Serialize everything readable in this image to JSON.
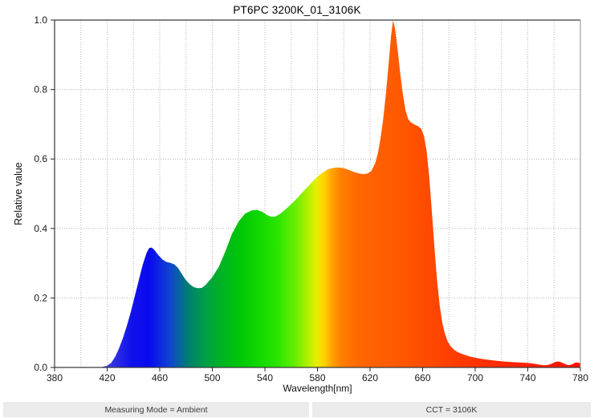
{
  "title": "PT6PC 3200K_01_3106K",
  "footer": {
    "measuring_mode": "Measuring Mode = Ambient",
    "cct": "CCT = 3106K"
  },
  "chart_data": {
    "type": "area",
    "title": "PT6PC 3200K_01_3106K",
    "xlabel": "Wavelength[nm]",
    "ylabel": "Relative value",
    "xlim": [
      380,
      780
    ],
    "ylim": [
      0,
      1
    ],
    "grid": {
      "x_step_nm": 20,
      "y_step": 0.2,
      "style": "dotted",
      "color": "#b3b3b3"
    },
    "x_ticks": [
      {
        "value": 380,
        "label": "380"
      },
      {
        "value": 420,
        "label": "420"
      },
      {
        "value": 460,
        "label": "460"
      },
      {
        "value": 500,
        "label": "500"
      },
      {
        "value": 540,
        "label": "540"
      },
      {
        "value": 580,
        "label": "580"
      },
      {
        "value": 620,
        "label": "620"
      },
      {
        "value": 660,
        "label": "660"
      },
      {
        "value": 700,
        "label": "700"
      },
      {
        "value": 740,
        "label": "740"
      },
      {
        "value": 780,
        "label": "780"
      }
    ],
    "y_ticks": [
      {
        "value": 0.0,
        "label": "0.0"
      },
      {
        "value": 0.2,
        "label": "0.2"
      },
      {
        "value": 0.4,
        "label": "0.4"
      },
      {
        "value": 0.6,
        "label": "0.6"
      },
      {
        "value": 0.8,
        "label": "0.8"
      },
      {
        "value": 1.0,
        "label": "1.0"
      }
    ],
    "points": [
      [
        414,
        0
      ],
      [
        417,
        0.002
      ],
      [
        420,
        0.005
      ],
      [
        423,
        0.013
      ],
      [
        426,
        0.03
      ],
      [
        429,
        0.055
      ],
      [
        432,
        0.085
      ],
      [
        435,
        0.12
      ],
      [
        438,
        0.16
      ],
      [
        441,
        0.205
      ],
      [
        444,
        0.25
      ],
      [
        447,
        0.295
      ],
      [
        450,
        0.33
      ],
      [
        452,
        0.344
      ],
      [
        454,
        0.345
      ],
      [
        456,
        0.338
      ],
      [
        459,
        0.323
      ],
      [
        462,
        0.311
      ],
      [
        465,
        0.304
      ],
      [
        468,
        0.301
      ],
      [
        471,
        0.297
      ],
      [
        474,
        0.286
      ],
      [
        477,
        0.268
      ],
      [
        480,
        0.251
      ],
      [
        483,
        0.239
      ],
      [
        486,
        0.231
      ],
      [
        489,
        0.228
      ],
      [
        492,
        0.229
      ],
      [
        495,
        0.238
      ],
      [
        500,
        0.26
      ],
      [
        505,
        0.29
      ],
      [
        510,
        0.335
      ],
      [
        515,
        0.385
      ],
      [
        520,
        0.42
      ],
      [
        525,
        0.443
      ],
      [
        530,
        0.452
      ],
      [
        534,
        0.4535
      ],
      [
        538,
        0.448
      ],
      [
        542,
        0.438
      ],
      [
        545,
        0.4335
      ],
      [
        548,
        0.4345
      ],
      [
        552,
        0.443
      ],
      [
        556,
        0.456
      ],
      [
        560,
        0.47
      ],
      [
        565,
        0.489
      ],
      [
        570,
        0.51
      ],
      [
        575,
        0.53
      ],
      [
        580,
        0.5495
      ],
      [
        584,
        0.5615
      ],
      [
        588,
        0.5705
      ],
      [
        592,
        0.5745
      ],
      [
        596,
        0.5755
      ],
      [
        600,
        0.5735
      ],
      [
        604,
        0.5685
      ],
      [
        608,
        0.5625
      ],
      [
        612,
        0.558
      ],
      [
        615,
        0.5565
      ],
      [
        618,
        0.558
      ],
      [
        621,
        0.5655
      ],
      [
        624,
        0.589
      ],
      [
        626,
        0.617
      ],
      [
        628,
        0.66
      ],
      [
        630,
        0.715
      ],
      [
        632,
        0.785
      ],
      [
        634,
        0.868
      ],
      [
        636,
        0.955
      ],
      [
        637.5,
        1.0
      ],
      [
        639,
        0.975
      ],
      [
        641,
        0.915
      ],
      [
        643,
        0.845
      ],
      [
        645,
        0.786
      ],
      [
        647,
        0.74
      ],
      [
        649,
        0.715
      ],
      [
        651,
        0.7055
      ],
      [
        654,
        0.699
      ],
      [
        657,
        0.6935
      ],
      [
        659,
        0.6865
      ],
      [
        661,
        0.667
      ],
      [
        663,
        0.625
      ],
      [
        665,
        0.55
      ],
      [
        667,
        0.45
      ],
      [
        669,
        0.345
      ],
      [
        671,
        0.25
      ],
      [
        673,
        0.178
      ],
      [
        675,
        0.128
      ],
      [
        677,
        0.096
      ],
      [
        679,
        0.0755
      ],
      [
        681,
        0.0625
      ],
      [
        684,
        0.0505
      ],
      [
        687,
        0.0435
      ],
      [
        691,
        0.0375
      ],
      [
        696,
        0.0315
      ],
      [
        700,
        0.028
      ],
      [
        706,
        0.024
      ],
      [
        712,
        0.021
      ],
      [
        718,
        0.0185
      ],
      [
        724,
        0.0165
      ],
      [
        730,
        0.015
      ],
      [
        736,
        0.014
      ],
      [
        741,
        0.0128
      ],
      [
        745,
        0.0108
      ],
      [
        749,
        0.008
      ],
      [
        752,
        0.0065
      ],
      [
        755,
        0.007
      ],
      [
        758,
        0.0105
      ],
      [
        761,
        0.016
      ],
      [
        763,
        0.0172
      ],
      [
        765,
        0.0155
      ],
      [
        768,
        0.0105
      ],
      [
        770,
        0.0072
      ],
      [
        772,
        0.0068
      ],
      [
        774,
        0.0095
      ],
      [
        776,
        0.0138
      ],
      [
        778,
        0.0142
      ],
      [
        780,
        0.0125
      ]
    ],
    "fill_gradient": [
      {
        "wavelength": 414,
        "color": "#4a4ae0"
      },
      {
        "wavelength": 420,
        "color": "#3c3ce0"
      },
      {
        "wavelength": 438,
        "color": "#1212ec"
      },
      {
        "wavelength": 452,
        "color": "#0909f0"
      },
      {
        "wavelength": 468,
        "color": "#0f46cf"
      },
      {
        "wavelength": 482,
        "color": "#00806e"
      },
      {
        "wavelength": 495,
        "color": "#00a046"
      },
      {
        "wavelength": 508,
        "color": "#00b520"
      },
      {
        "wavelength": 522,
        "color": "#00c806"
      },
      {
        "wavelength": 536,
        "color": "#12d800"
      },
      {
        "wavelength": 550,
        "color": "#2ce600"
      },
      {
        "wavelength": 562,
        "color": "#62ee00"
      },
      {
        "wavelength": 572,
        "color": "#aaf000"
      },
      {
        "wavelength": 579,
        "color": "#e6ee00"
      },
      {
        "wavelength": 585,
        "color": "#ffd400"
      },
      {
        "wavelength": 591,
        "color": "#ffa300"
      },
      {
        "wavelength": 598,
        "color": "#ff7f00"
      },
      {
        "wavelength": 612,
        "color": "#ff6600"
      },
      {
        "wavelength": 645,
        "color": "#ff5700"
      },
      {
        "wavelength": 672,
        "color": "#ff4400"
      },
      {
        "wavelength": 700,
        "color": "#ff3300"
      },
      {
        "wavelength": 735,
        "color": "#ff2200"
      },
      {
        "wavelength": 780,
        "color": "#ff1200"
      }
    ],
    "frame_colors": {
      "dark": "#3a3a3a",
      "right": "#929292",
      "tick": "#2a2a2a"
    }
  }
}
